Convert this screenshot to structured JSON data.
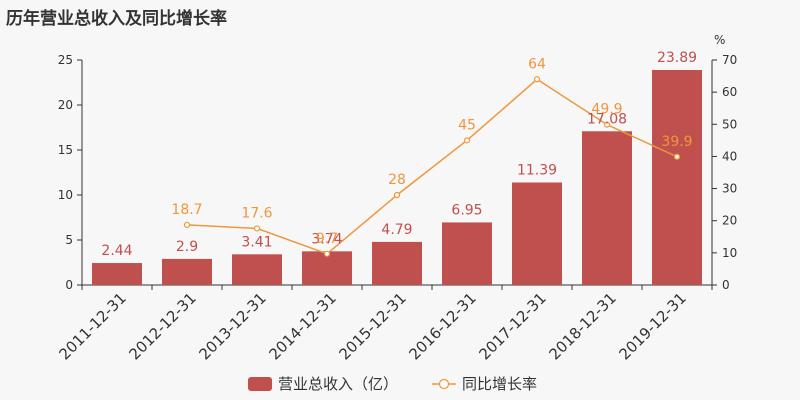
{
  "title": "历年营业总收入及同比增长率",
  "colors": {
    "bar": "#c0504d",
    "line": "#f0963c",
    "axis": "#333333",
    "background": "#f7f7f7"
  },
  "chart_data": {
    "type": "bar",
    "categories": [
      "2011-12-31",
      "2012-12-31",
      "2013-12-31",
      "2014-12-31",
      "2015-12-31",
      "2016-12-31",
      "2017-12-31",
      "2018-12-31",
      "2019-12-31"
    ],
    "series": [
      {
        "name": "营业总收入（亿）",
        "type": "bar",
        "axis": "left",
        "values": [
          2.44,
          2.9,
          3.41,
          3.74,
          4.79,
          6.95,
          11.39,
          17.08,
          23.89
        ],
        "labels": [
          "2.44",
          "2.9",
          "3.41",
          "3.74",
          "4.79",
          "6.95",
          "11.39",
          "17.08",
          "23.89"
        ]
      },
      {
        "name": "同比增长率",
        "type": "line",
        "axis": "right",
        "values": [
          null,
          18.7,
          17.6,
          9.7,
          28,
          45,
          64,
          49.9,
          39.9
        ],
        "labels": [
          "",
          "18.7",
          "17.6",
          "9.7",
          "28",
          "45",
          "64",
          "49.9",
          "39.9"
        ]
      }
    ],
    "y_left": {
      "min": 0,
      "max": 25,
      "ticks": [
        0,
        5,
        10,
        15,
        20,
        25
      ]
    },
    "y_right": {
      "min": 0,
      "max": 70,
      "ticks": [
        0,
        10,
        20,
        30,
        40,
        50,
        60,
        70
      ],
      "unit": "%"
    },
    "legend": {
      "position": "bottom-center"
    },
    "grid": false
  }
}
